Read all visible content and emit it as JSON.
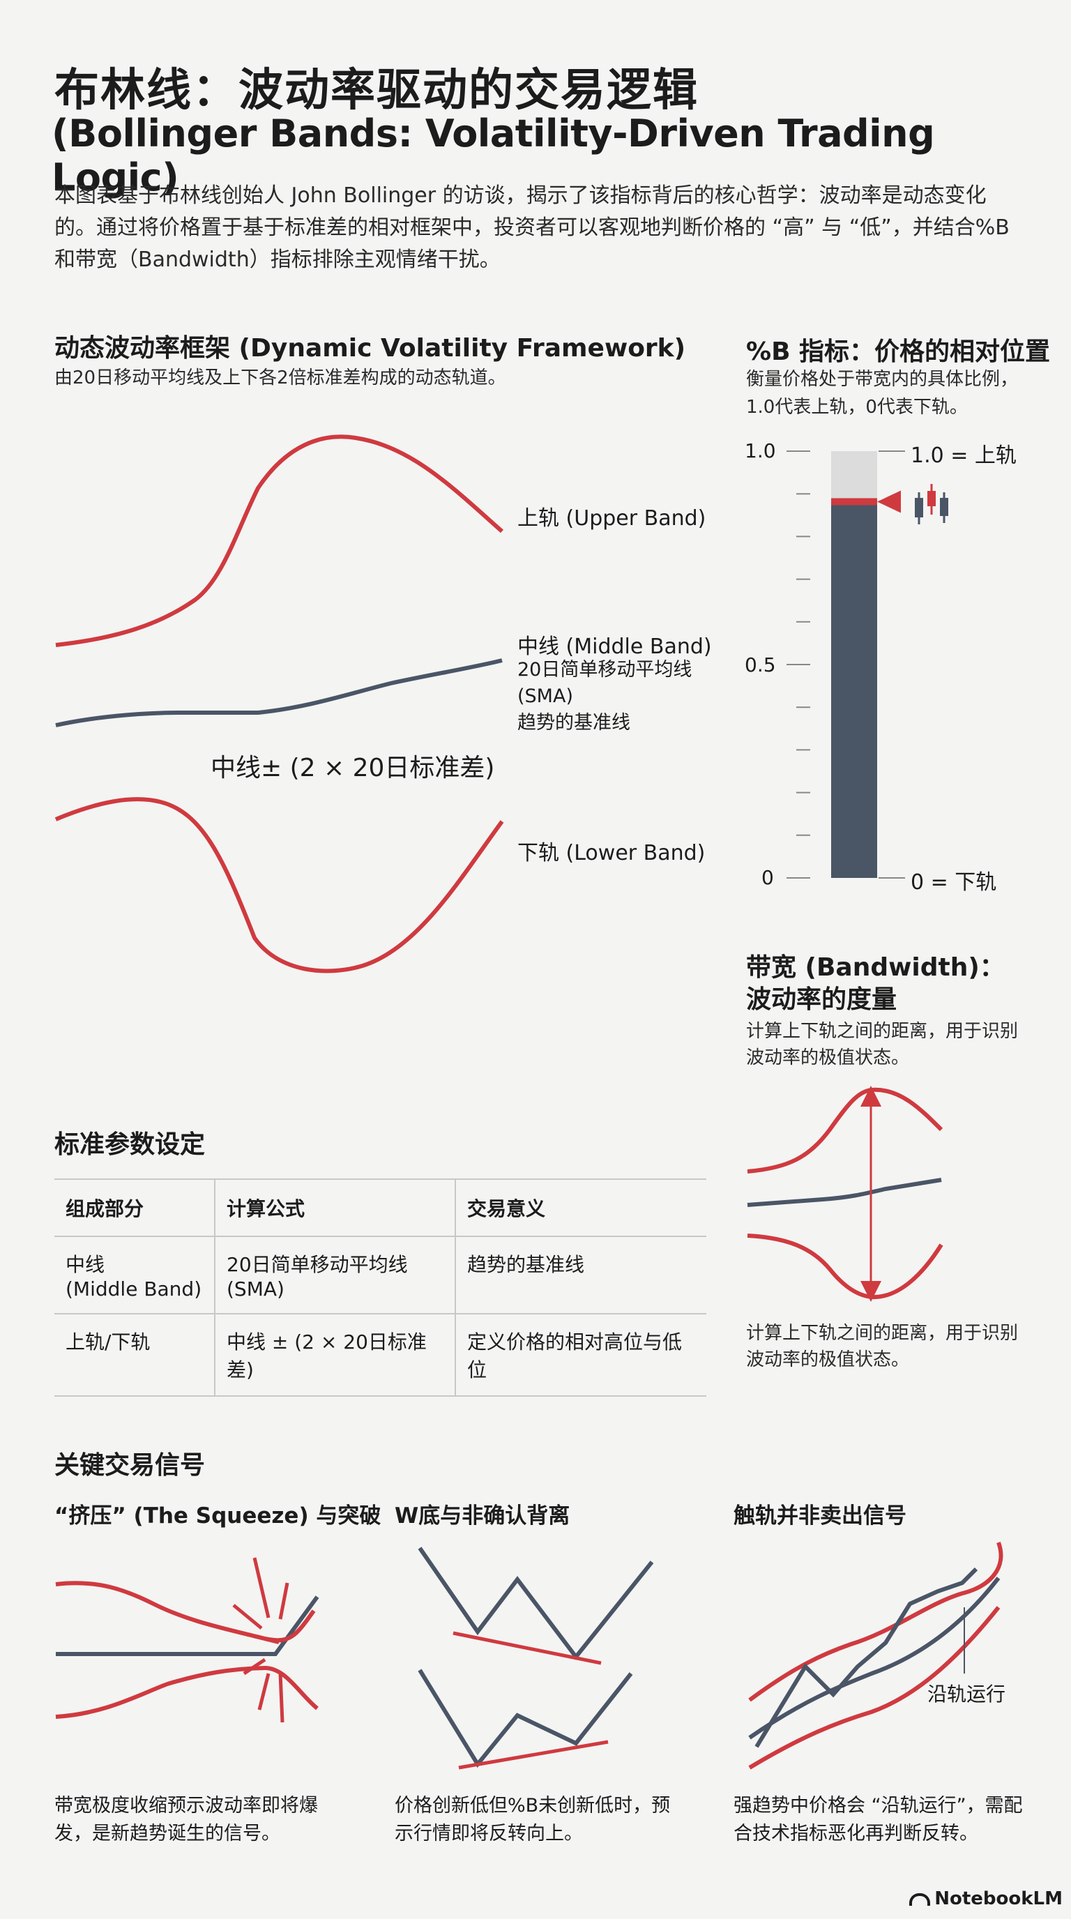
{
  "header": {
    "title_cn": "布林线：波动率驱动的交易逻辑",
    "title_en": "(Bollinger Bands: Volatility-Driven Trading Logic)",
    "intro": "本图表基于布林线创始人 John Bollinger 的访谈，揭示了该指标背后的核心哲学：波动率是动态变化的。通过将价格置于基于标准差的相对框架中，投资者可以客观地判断价格的 “高” 与 “低”，并结合%B 和带宽（Bandwidth）指标排除主观情绪干扰。"
  },
  "framework": {
    "title": "动态波动率框架 (Dynamic Volatility Framework)",
    "subtitle": "由20日移动平均线及上下各2倍标准差构成的动态轨道。",
    "upper_label": "上轨 (Upper Band)",
    "middle_label": "中线 (Middle Band)",
    "middle_desc1": "20日简单移动平均线",
    "middle_desc2": "(SMA)",
    "middle_desc3": "趋势的基准线",
    "formula": "中线± (2 × 20日标准差)",
    "lower_label": "下轨 (Lower Band)"
  },
  "percent_b": {
    "title": "%B 指标：价格的相对位置",
    "subtitle1": "衡量价格处于带宽内的具体比例，",
    "subtitle2": "1.0代表上轨，0代表下轨。",
    "tick_top": "1.0",
    "tick_mid": "0.5",
    "tick_bottom": "0",
    "label_top": "1.0 = 上轨",
    "label_bottom": "0 = 下轨",
    "marker_value": 0.88
  },
  "bandwidth": {
    "title1": "带宽 (Bandwidth)：",
    "title2": "波动率的度量",
    "desc_top": "计算上下轨之间的距离，用于识别波动率的极值状态。",
    "desc_bottom": "计算上下轨之间的距离，用于识别波动率的极值状态。"
  },
  "params": {
    "title": "标准参数设定",
    "headers": [
      "组成部分",
      "计算公式",
      "交易意义"
    ],
    "row1": [
      "中线",
      "(Middle Band)",
      "20日简单移动平均线",
      "(SMA)",
      "趋势的基准线"
    ],
    "row2": [
      "上轨/下轨",
      "中线 ± (2 × 20日标准差)",
      "定义价格的相对高位与低位"
    ]
  },
  "signals": {
    "title": "关键交易信号",
    "squeeze_title": "“挤压” (The Squeeze) 与突破",
    "squeeze_caption": "带宽极度收缩预示波动率即将爆发，是新趋势诞生的信号。",
    "w_title": "W底与非确认背离",
    "w_caption": "价格创新低但%B未创新低时，预示行情即将反转向上。",
    "walk_title": "触轨并非卖出信号",
    "walk_label": "沿轨运行",
    "walk_caption": "强趋势中价格会 “沿轨运行”，需配合技术指标恶化再判断反转。"
  },
  "footer": {
    "logo": "NotebookLM"
  },
  "colors": {
    "red": "#cf3a3f",
    "slate": "#4a5566",
    "light": "#dcdcdc"
  }
}
